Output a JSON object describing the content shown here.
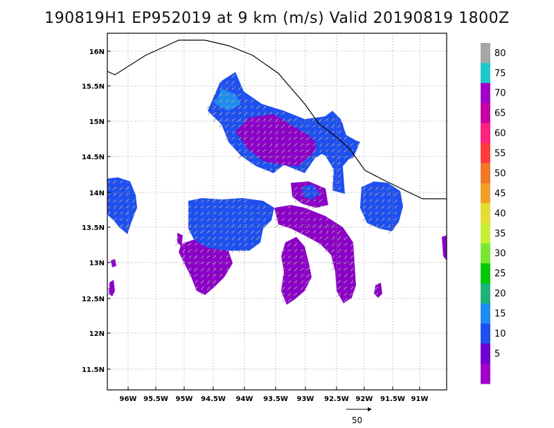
{
  "title": "190819H1  EP952019 at 9 km (m/s) Valid 20190819  1800Z",
  "x_ticks": [
    "96W",
    "95.5W",
    "95W",
    "94.5W",
    "94W",
    "93.5W",
    "93W",
    "92.5W",
    "92W",
    "91.5W",
    "91W"
  ],
  "y_ticks": [
    "16N",
    "15.5N",
    "15N",
    "14.5N",
    "14N",
    "13.5N",
    "13N",
    "12.5N",
    "12N",
    "11.5N"
  ],
  "colorbar": {
    "labels": [
      "80",
      "75",
      "70",
      "65",
      "60",
      "55",
      "50",
      "45",
      "40",
      "35",
      "30",
      "25",
      "20",
      "15",
      "10",
      "5"
    ],
    "colors": [
      "#a6a6a6",
      "#1fc8c8",
      "#a000c8",
      "#c800a0",
      "#ff2080",
      "#ff3c3c",
      "#f07828",
      "#f0a028",
      "#e6dc32",
      "#c8f032",
      "#78e632",
      "#00c800",
      "#1eb478",
      "#1e8cf0",
      "#1e50f0",
      "#7000d0",
      "#a000c8"
    ]
  },
  "wind_colors": {
    "weak_purple": "#8c00c8",
    "blue": "#1e50f0",
    "cyan": "#1e8cf0",
    "light_cyan": "#1fc8c8",
    "arrow_gray": "#a6a6a6"
  },
  "reference_vector": "50"
}
